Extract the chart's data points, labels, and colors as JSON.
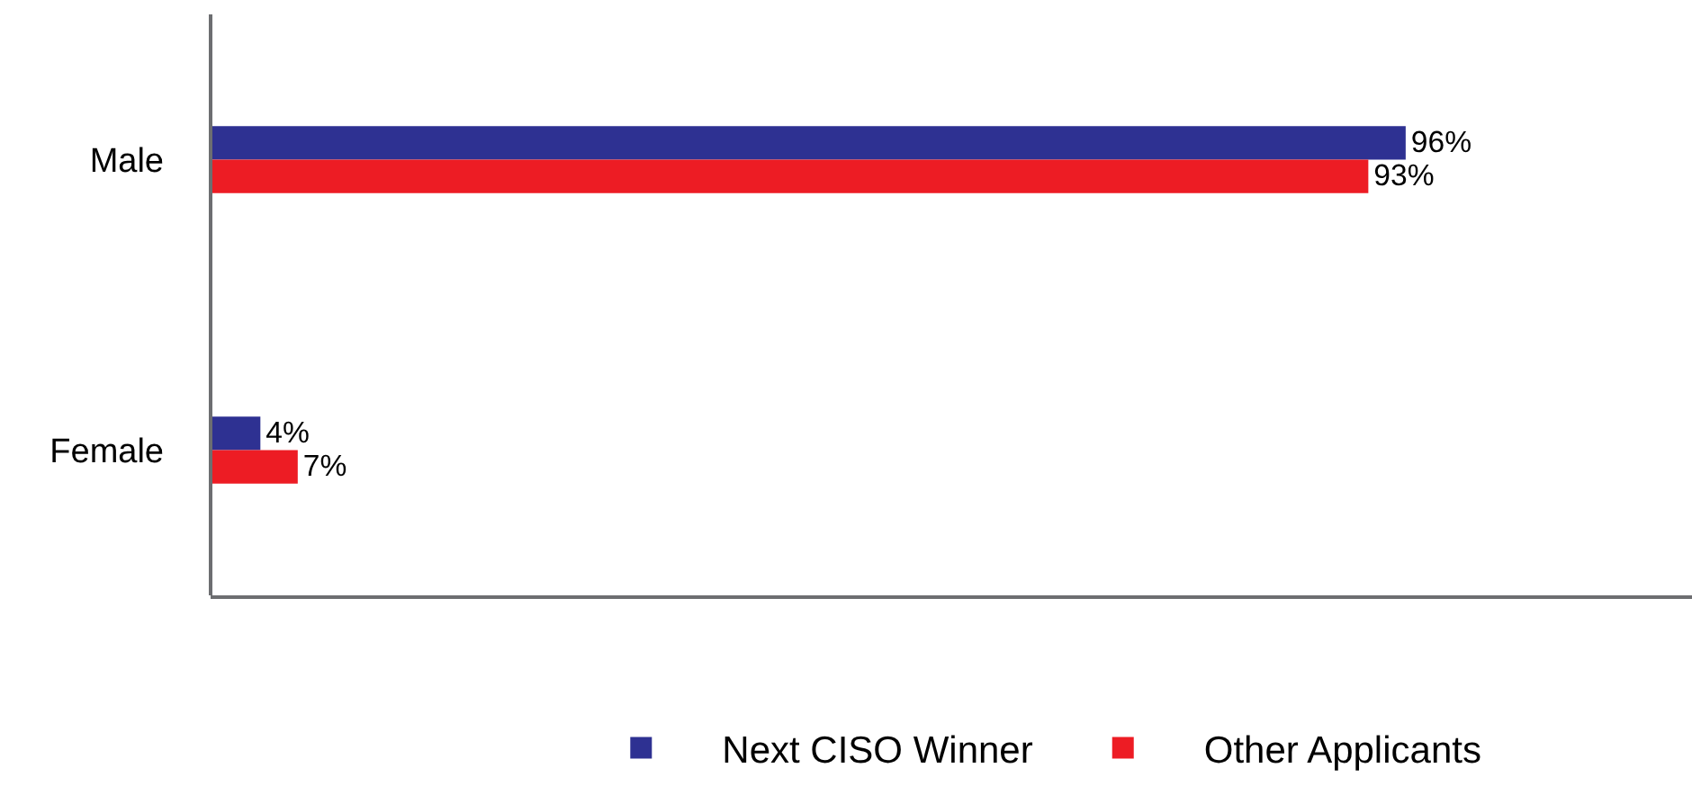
{
  "chart_data": {
    "type": "bar",
    "orientation": "horizontal",
    "categories": [
      "Male",
      "Female"
    ],
    "series": [
      {
        "name": "Next CISO Winner",
        "color": "#2e3192",
        "values": [
          96,
          4
        ],
        "value_labels": [
          "96%",
          "4%"
        ]
      },
      {
        "name": "Other Applicants",
        "color": "#ed1c24",
        "values": [
          93,
          7
        ],
        "value_labels": [
          "93%",
          "7%"
        ]
      }
    ],
    "xlim": [
      0,
      119
    ],
    "tick_labels": "y",
    "legend": "bottom"
  }
}
